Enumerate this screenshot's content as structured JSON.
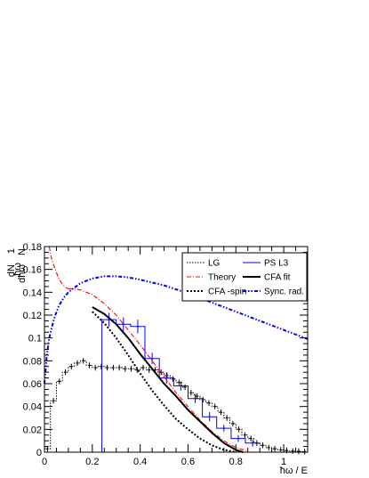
{
  "chart_data": {
    "type": "line",
    "title": "",
    "xlabel": "ħω / E",
    "ylabel": "1/N · ħω dN/dħω",
    "ylabel_parts": {
      "prefix": "ħω",
      "mid": "N",
      "num": "dN",
      "den": "dħω",
      "one": "1"
    },
    "xlim": [
      0,
      1.1
    ],
    "ylim": [
      0,
      0.18
    ],
    "x_ticks": [
      0,
      0.2,
      0.4,
      0.6,
      0.8,
      1
    ],
    "x_tick_labels": [
      "0",
      "0.2",
      "0.4",
      "0.6",
      "0.8",
      "1"
    ],
    "y_ticks": [
      0,
      0.02,
      0.04,
      0.06,
      0.08,
      0.1,
      0.12,
      0.14,
      0.16,
      0.18
    ],
    "y_tick_labels": [
      "0",
      "0.02",
      "0.04",
      "0.06",
      "0.08",
      "0.1",
      "0.12",
      "0.14",
      "0.16",
      "0.18"
    ],
    "legend_placement": "top-right",
    "legend": [
      {
        "label": "LG",
        "color": "#000000",
        "style": "dotted-step"
      },
      {
        "label": "PS L3",
        "color": "#0000ff",
        "style": "solid"
      },
      {
        "label": "Theory",
        "color": "#ff0000",
        "style": "dash-dot"
      },
      {
        "label": "CFA fit",
        "color": "#000000",
        "style": "solid-thick"
      },
      {
        "label": "CFA -spin",
        "color": "#000000",
        "style": "dotted-thick"
      },
      {
        "label": "Sync. rad.",
        "color": "#0000ff",
        "style": "dash-dot-dot"
      }
    ],
    "series": [
      {
        "name": "LG",
        "kind": "histogram",
        "color": "#000000",
        "bin_edges": [
          0.0,
          0.025,
          0.05,
          0.075,
          0.1,
          0.125,
          0.15,
          0.175,
          0.2,
          0.225,
          0.25,
          0.275,
          0.3,
          0.325,
          0.35,
          0.375,
          0.4,
          0.425,
          0.45,
          0.475,
          0.5,
          0.525,
          0.55,
          0.575,
          0.6,
          0.625,
          0.65,
          0.675,
          0.7,
          0.725,
          0.75,
          0.775,
          0.8,
          0.825,
          0.85,
          0.875,
          0.9,
          0.925,
          0.95,
          0.975,
          1.0,
          1.025,
          1.05,
          1.075,
          1.1
        ],
        "values": [
          0.003,
          0.045,
          0.062,
          0.07,
          0.075,
          0.078,
          0.08,
          0.076,
          0.074,
          0.075,
          0.074,
          0.074,
          0.074,
          0.073,
          0.073,
          0.072,
          0.074,
          0.072,
          0.072,
          0.07,
          0.067,
          0.064,
          0.061,
          0.057,
          0.052,
          0.049,
          0.046,
          0.043,
          0.04,
          0.035,
          0.03,
          0.025,
          0.02,
          0.015,
          0.012,
          0.008,
          0.006,
          0.004,
          0.003,
          0.002,
          0.0015,
          0.001,
          0.0008,
          0.0005
        ]
      },
      {
        "name": "PS L3",
        "kind": "histogram",
        "color": "#0000ff",
        "bin_edges": [
          0.24,
          0.3,
          0.36,
          0.42,
          0.48,
          0.54,
          0.6,
          0.66,
          0.72,
          0.78,
          0.84,
          0.9
        ],
        "values": [
          0.116,
          0.112,
          0.11,
          0.082,
          0.065,
          0.058,
          0.047,
          0.031,
          0.021,
          0.012,
          0.008
        ],
        "errors": [
          0.006,
          0.006,
          0.006,
          0.005,
          0.005,
          0.004,
          0.004,
          0.004,
          0.003,
          0.003,
          0.003
        ],
        "left_edge_from_zero": true
      },
      {
        "name": "Theory",
        "kind": "line",
        "color": "#ff0000",
        "x": [
          0.1,
          0.12,
          0.15,
          0.2,
          0.25,
          0.3,
          0.35,
          0.4,
          0.45,
          0.5,
          0.55,
          0.6,
          0.65,
          0.7,
          0.75,
          0.8,
          0.85
        ],
        "y": [
          0.143,
          0.143,
          0.142,
          0.138,
          0.13,
          0.12,
          0.107,
          0.094,
          0.08,
          0.066,
          0.052,
          0.04,
          0.028,
          0.018,
          0.01,
          0.004,
          0.001
        ],
        "x_low": [
          0.02,
          0.03,
          0.045,
          0.06,
          0.075,
          0.09,
          0.1
        ],
        "y_low": [
          0.18,
          0.169,
          0.16,
          0.152,
          0.147,
          0.144,
          0.143
        ]
      },
      {
        "name": "CFA fit",
        "kind": "line",
        "color": "#000000",
        "x": [
          0.2,
          0.25,
          0.3,
          0.35,
          0.4,
          0.45,
          0.5,
          0.55,
          0.6,
          0.65,
          0.7,
          0.75,
          0.8,
          0.83
        ],
        "y": [
          0.127,
          0.121,
          0.112,
          0.1,
          0.086,
          0.073,
          0.06,
          0.049,
          0.037,
          0.027,
          0.017,
          0.008,
          0.002,
          0.0
        ]
      },
      {
        "name": "CFA -spin",
        "kind": "line",
        "color": "#000000",
        "x": [
          0.2,
          0.25,
          0.3,
          0.35,
          0.4,
          0.45,
          0.5,
          0.55,
          0.6,
          0.65,
          0.7,
          0.75,
          0.8
        ],
        "y": [
          0.123,
          0.113,
          0.1,
          0.085,
          0.069,
          0.054,
          0.041,
          0.029,
          0.02,
          0.012,
          0.006,
          0.002,
          0.0
        ]
      },
      {
        "name": "Sync. rad.",
        "kind": "line",
        "color": "#0000ff",
        "x": [
          0.0,
          0.01,
          0.02,
          0.04,
          0.06,
          0.08,
          0.1,
          0.15,
          0.2,
          0.25,
          0.3,
          0.35,
          0.4,
          0.5,
          0.6,
          0.7,
          0.8,
          0.9,
          1.0,
          1.1
        ],
        "y": [
          0.06,
          0.085,
          0.1,
          0.117,
          0.128,
          0.135,
          0.14,
          0.148,
          0.152,
          0.154,
          0.154,
          0.153,
          0.151,
          0.146,
          0.139,
          0.131,
          0.123,
          0.115,
          0.107,
          0.099
        ]
      }
    ]
  }
}
